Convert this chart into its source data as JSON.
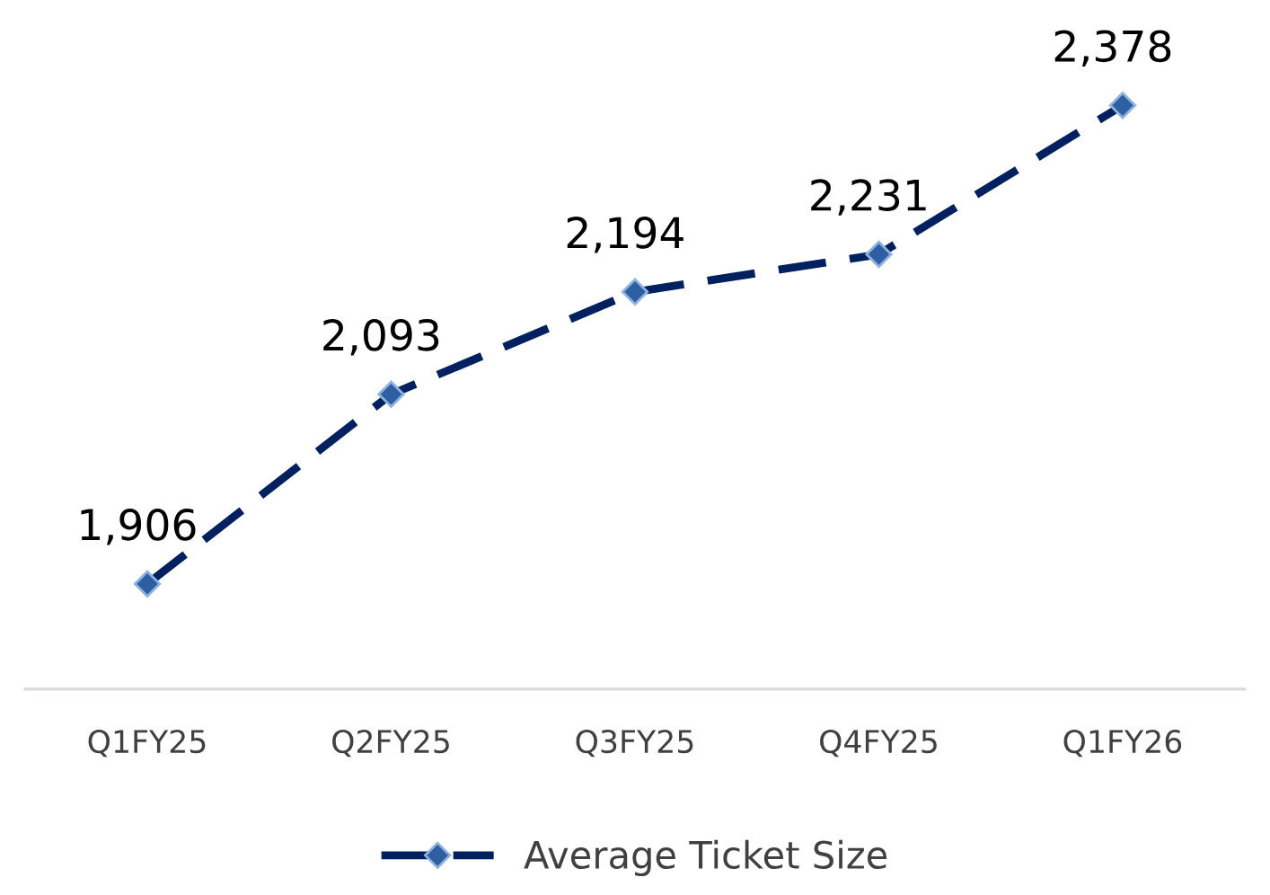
{
  "chart_data": {
    "type": "line",
    "categories": [
      "Q1FY25",
      "Q2FY25",
      "Q3FY25",
      "Q4FY25",
      "Q1FY26"
    ],
    "series": [
      {
        "name": "Average Ticket Size",
        "color": "#002060",
        "values": [
          1906,
          2093,
          2194,
          2231,
          2378
        ],
        "value_labels": [
          "1,906",
          "2,093",
          "2,194",
          "2,231",
          "2,378"
        ]
      }
    ],
    "marker": "diamond",
    "line_style": "dashed",
    "legend": "bottom",
    "grid": false,
    "tick_labels": "x"
  }
}
